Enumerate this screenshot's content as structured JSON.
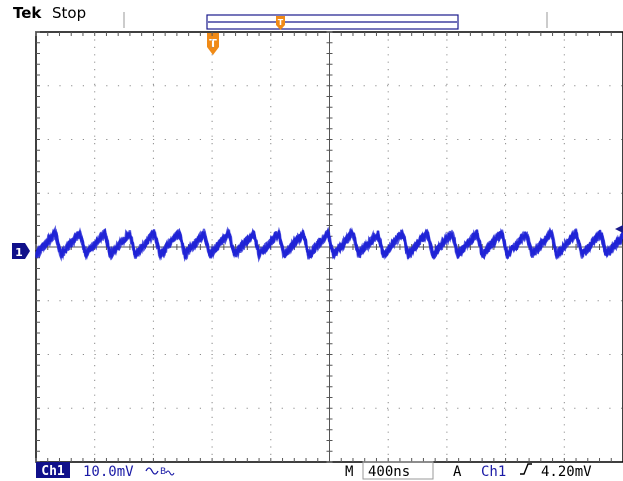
{
  "header": {
    "brand": "Tek",
    "status": "Stop",
    "trigger_marker_label": "T"
  },
  "channel": {
    "marker_label": "1",
    "badge": "Ch1",
    "scale": "10.0mV",
    "coupling_icon": "bandwidth-limit-icon"
  },
  "timebase": {
    "prefix": "M",
    "value": "400ns"
  },
  "trigger": {
    "mode": "A",
    "source": "Ch1",
    "slope_icon": "rising-edge-icon",
    "level": "4.20mV"
  },
  "colors": {
    "trace": "#1f23d6",
    "trigger": "#f08a16",
    "grid": "#8a8a8a",
    "badge": "#10108a"
  },
  "chart_data": {
    "type": "line",
    "title": "",
    "xlabel": "",
    "ylabel": "",
    "grid": true,
    "divisions": {
      "x": 10,
      "y": 8
    },
    "series": [
      {
        "values": []
      }
    ]
  }
}
